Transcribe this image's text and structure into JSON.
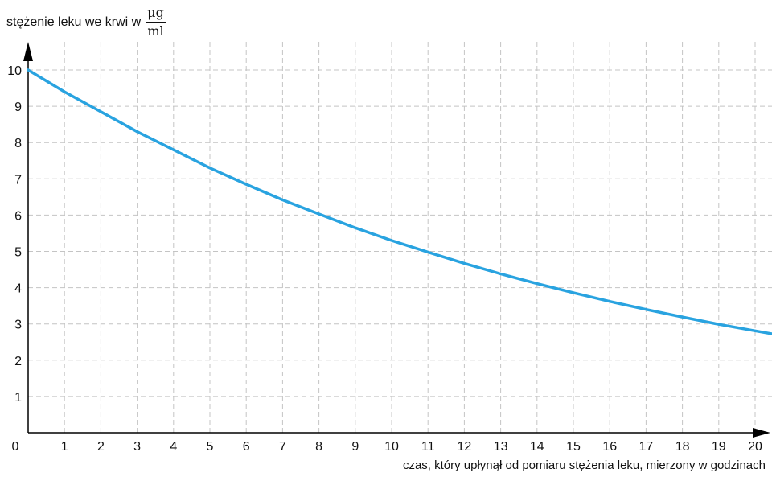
{
  "chart_data": {
    "type": "line",
    "ylabel_text": "stężenie leku we krwi w",
    "ylabel_unit_numerator": "μg",
    "ylabel_unit_denominator": "ml",
    "xlabel": "czas, który upłynął od pomiaru stężenia leku, mierzony w godzinach",
    "xlim": [
      0,
      20.5
    ],
    "ylim": [
      0,
      10.8
    ],
    "x_ticks": [
      1,
      2,
      3,
      4,
      5,
      6,
      7,
      8,
      9,
      10,
      11,
      12,
      13,
      14,
      15,
      16,
      17,
      18,
      19,
      20
    ],
    "y_ticks": [
      1,
      2,
      3,
      4,
      5,
      6,
      7,
      8,
      9,
      10
    ],
    "origin_label": "0",
    "grid": true,
    "series": [
      {
        "color": "#29a3e0",
        "x": [
          0,
          1,
          2,
          3,
          4,
          5,
          6,
          7,
          8,
          9,
          10,
          11,
          12,
          13,
          14,
          15,
          16,
          17,
          18,
          19,
          20,
          20.5
        ],
        "values": [
          10,
          9.4,
          8.85,
          8.3,
          7.8,
          7.3,
          6.85,
          6.42,
          6.03,
          5.65,
          5.3,
          4.98,
          4.67,
          4.38,
          4.11,
          3.86,
          3.62,
          3.4,
          3.19,
          2.99,
          2.81,
          2.72
        ]
      }
    ]
  },
  "colors": {
    "axis": "#000000",
    "grid": "#c4c4c4",
    "line": "#29a3e0"
  }
}
